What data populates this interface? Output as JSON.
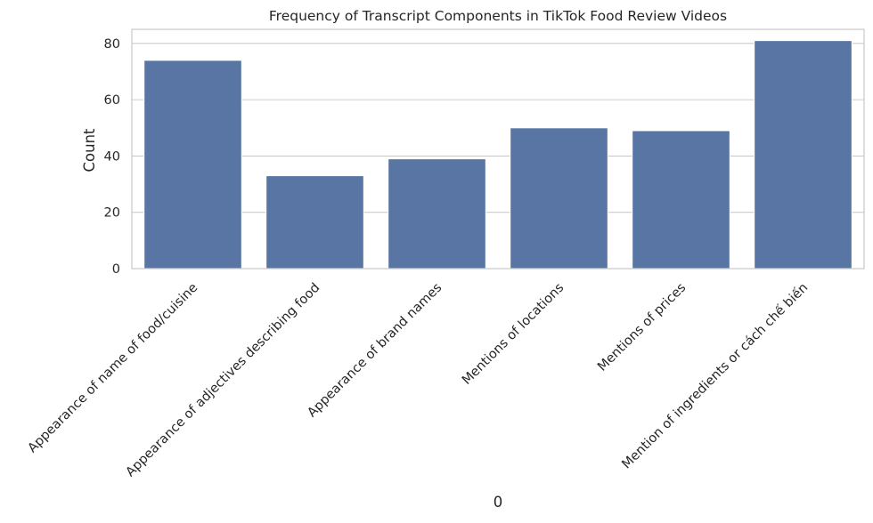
{
  "chart_data": {
    "type": "bar",
    "title": "Frequency of Transcript Components in TikTok Food Review Videos",
    "xlabel": "0",
    "ylabel": "Count",
    "categories": [
      "Appearance of name of food/cuisine",
      "Appearance of adjectives describing food",
      "Appearance of brand names",
      "Mentions of locations",
      "Mentions of prices",
      "Mention of ingredients or cách chế biến"
    ],
    "values": [
      74,
      33,
      39,
      50,
      49,
      81
    ],
    "ylim": [
      0,
      85
    ],
    "yticks": [
      0,
      20,
      40,
      60,
      80
    ],
    "grid": true,
    "bar_color": "#5875a4",
    "grid_color": "#cccccc",
    "background": "#ffffff"
  }
}
